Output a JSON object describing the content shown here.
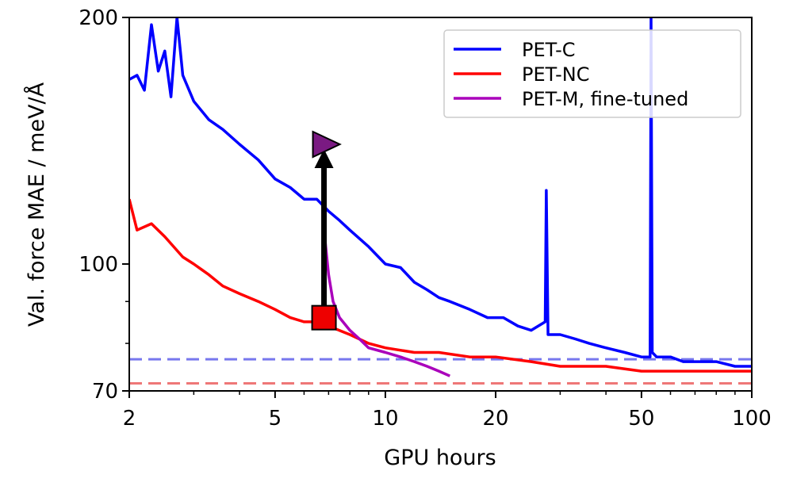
{
  "chart_data": {
    "type": "line",
    "xlabel": "GPU hours",
    "ylabel": "Val. force MAE / meV/Å",
    "xscale": "log",
    "yscale": "log",
    "xlim": [
      2,
      100
    ],
    "ylim": [
      70,
      200
    ],
    "x_ticks": [
      2,
      5,
      10,
      20,
      50,
      100
    ],
    "x_tick_labels": [
      "2",
      "5",
      "10",
      "20",
      "50",
      "100"
    ],
    "y_ticks": [
      70,
      100,
      200
    ],
    "y_tick_labels": [
      "70",
      "100",
      "200"
    ],
    "legend_position": "top-right",
    "series": [
      {
        "name": "PET-C",
        "color": "#0000ff",
        "x": [
          2.0,
          2.1,
          2.2,
          2.3,
          2.4,
          2.5,
          2.6,
          2.7,
          2.8,
          3.0,
          3.3,
          3.6,
          4.0,
          4.5,
          5.0,
          5.5,
          6.0,
          6.5,
          7.0,
          7.5,
          8.0,
          9.0,
          10,
          11,
          12,
          13,
          14,
          15,
          17,
          19,
          21,
          23,
          25,
          27.3,
          27.5,
          27.8,
          30,
          33,
          36,
          40,
          45,
          50,
          52.8,
          53.1,
          53.5,
          55,
          60,
          65,
          70,
          80,
          90,
          100
        ],
        "values": [
          168,
          170,
          163,
          196,
          172,
          182,
          160,
          200,
          170,
          158,
          150,
          146,
          140,
          134,
          127,
          124,
          120,
          120,
          116,
          113,
          110,
          105,
          100,
          99,
          95,
          93,
          91,
          90,
          88,
          86,
          86,
          84,
          83,
          85,
          123,
          82,
          82,
          81,
          80,
          79,
          78,
          77,
          77,
          200,
          78,
          77,
          77,
          76,
          76,
          76,
          75,
          75
        ]
      },
      {
        "name": "PET-NC",
        "color": "#ff0000",
        "x": [
          2.0,
          2.1,
          2.3,
          2.5,
          2.8,
          3.0,
          3.3,
          3.6,
          4.0,
          4.5,
          5.0,
          5.5,
          6.0,
          6.5,
          7.0,
          8.0,
          9.0,
          10,
          12,
          14,
          17,
          20,
          25,
          30,
          40,
          50,
          60,
          70,
          80,
          90,
          100
        ],
        "values": [
          120,
          110,
          112,
          108,
          102,
          100,
          97,
          94,
          92,
          90,
          88,
          86,
          85,
          85,
          84,
          82,
          80,
          79,
          78,
          78,
          77,
          77,
          76,
          75,
          75,
          74,
          74,
          74,
          74,
          74,
          74
        ]
      },
      {
        "name": "PET-M, fine-tuned",
        "color": "#aa00bb",
        "x": [
          6.8,
          7.0,
          7.2,
          7.5,
          8.0,
          8.5,
          9.0,
          10,
          11,
          12,
          13,
          14,
          15
        ],
        "values": [
          110,
          97,
          90,
          86,
          83,
          81,
          79,
          78,
          77,
          76,
          75,
          74,
          73
        ]
      }
    ],
    "reference_lines": [
      {
        "color": "#7777ee",
        "y": 76.5
      },
      {
        "color": "#ee7777",
        "y": 71.5
      }
    ],
    "markers": [
      {
        "shape": "square",
        "color": "#ee0000",
        "x": 6.8,
        "y": 86
      },
      {
        "shape": "triangle-right",
        "color": "#7a1a82",
        "x": 6.8,
        "y": 140
      }
    ],
    "annotation_arrow": {
      "from": [
        6.8,
        86
      ],
      "to": [
        6.8,
        140
      ]
    }
  }
}
